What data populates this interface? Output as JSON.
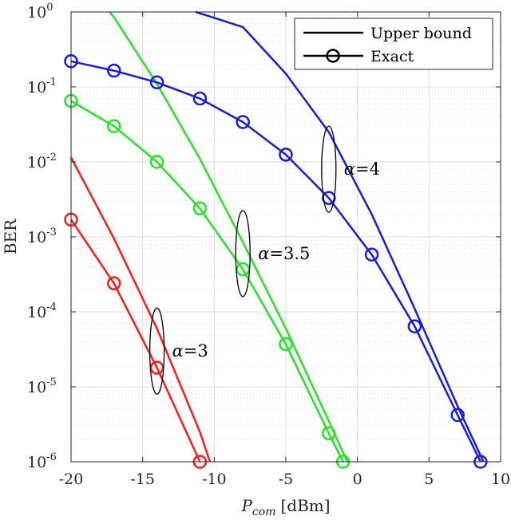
{
  "chart_data": {
    "type": "line",
    "xlabel_main": "P",
    "xlabel_sub": "com",
    "xlabel_unit": "[dBm]",
    "ylabel": "BER",
    "xlim": [
      -20,
      10
    ],
    "ylim": [
      1e-06,
      1
    ],
    "yscale": "log",
    "grid": true,
    "xticks": [
      -20,
      -15,
      -10,
      -5,
      0,
      5,
      10
    ],
    "xtick_labels": [
      "-20",
      "-15",
      "-10",
      "-5",
      "0",
      "5",
      "10"
    ],
    "ytick_exponents": [
      "0",
      "-1",
      "-2",
      "-3",
      "-4",
      "-5",
      "-6"
    ],
    "legend": {
      "placement": "top-right",
      "entries": [
        {
          "label": "Upper bound",
          "style": "line"
        },
        {
          "label": "Exact",
          "style": "line-circle"
        }
      ]
    },
    "series": [
      {
        "alpha": "3",
        "kind": "Upper bound",
        "color": "#ff1a1a",
        "x": [
          -20,
          -17,
          -14,
          -11,
          -10.3
        ],
        "y": [
          0.0115,
          0.00095,
          6e-05,
          2.5e-06,
          1e-06
        ]
      },
      {
        "alpha": "3",
        "kind": "Exact",
        "color": "#ff1a1a",
        "x": [
          -20,
          -17,
          -14,
          -11
        ],
        "y": [
          0.0017,
          0.00024,
          1.8e-05,
          1e-06
        ]
      },
      {
        "alpha": "3.5",
        "kind": "Upper bound",
        "color": "#22e622",
        "x": [
          -17.3,
          -17,
          -14,
          -11,
          -8,
          -5,
          -2,
          -0.7
        ],
        "y": [
          1.0,
          0.85,
          0.11,
          0.011,
          0.00085,
          6e-05,
          3.5e-06,
          1e-06
        ]
      },
      {
        "alpha": "3.5",
        "kind": "Exact",
        "color": "#22e622",
        "x": [
          -20,
          -17,
          -14,
          -11,
          -8,
          -5,
          -2,
          -1
        ],
        "y": [
          0.065,
          0.03,
          0.01,
          0.0024,
          0.00037,
          3.7e-05,
          2.4e-06,
          1e-06
        ]
      },
      {
        "alpha": "4",
        "kind": "Upper bound",
        "color": "#1a1ae6",
        "x": [
          -11.3,
          -8,
          -5,
          -2,
          1,
          4,
          7,
          8.8
        ],
        "y": [
          1.0,
          0.63,
          0.15,
          0.025,
          0.002,
          0.00011,
          5.5e-06,
          1e-06
        ]
      },
      {
        "alpha": "4",
        "kind": "Exact",
        "color": "#1a1ae6",
        "x": [
          -20,
          -17,
          -14,
          -11,
          -8,
          -5,
          -2,
          1,
          4,
          7,
          8.6
        ],
        "y": [
          0.22,
          0.165,
          0.115,
          0.07,
          0.034,
          0.0125,
          0.0033,
          0.00058,
          6.4e-05,
          4.2e-06,
          1e-06
        ]
      }
    ],
    "annotations": [
      {
        "prefix": "α",
        "value": "=3",
        "center": [
          -14,
          3e-05
        ]
      },
      {
        "prefix": "α",
        "value": "=3.5",
        "center": [
          -8,
          0.0006
        ]
      },
      {
        "prefix": "α",
        "value": "=4",
        "center": [
          -2,
          0.008
        ]
      }
    ]
  }
}
